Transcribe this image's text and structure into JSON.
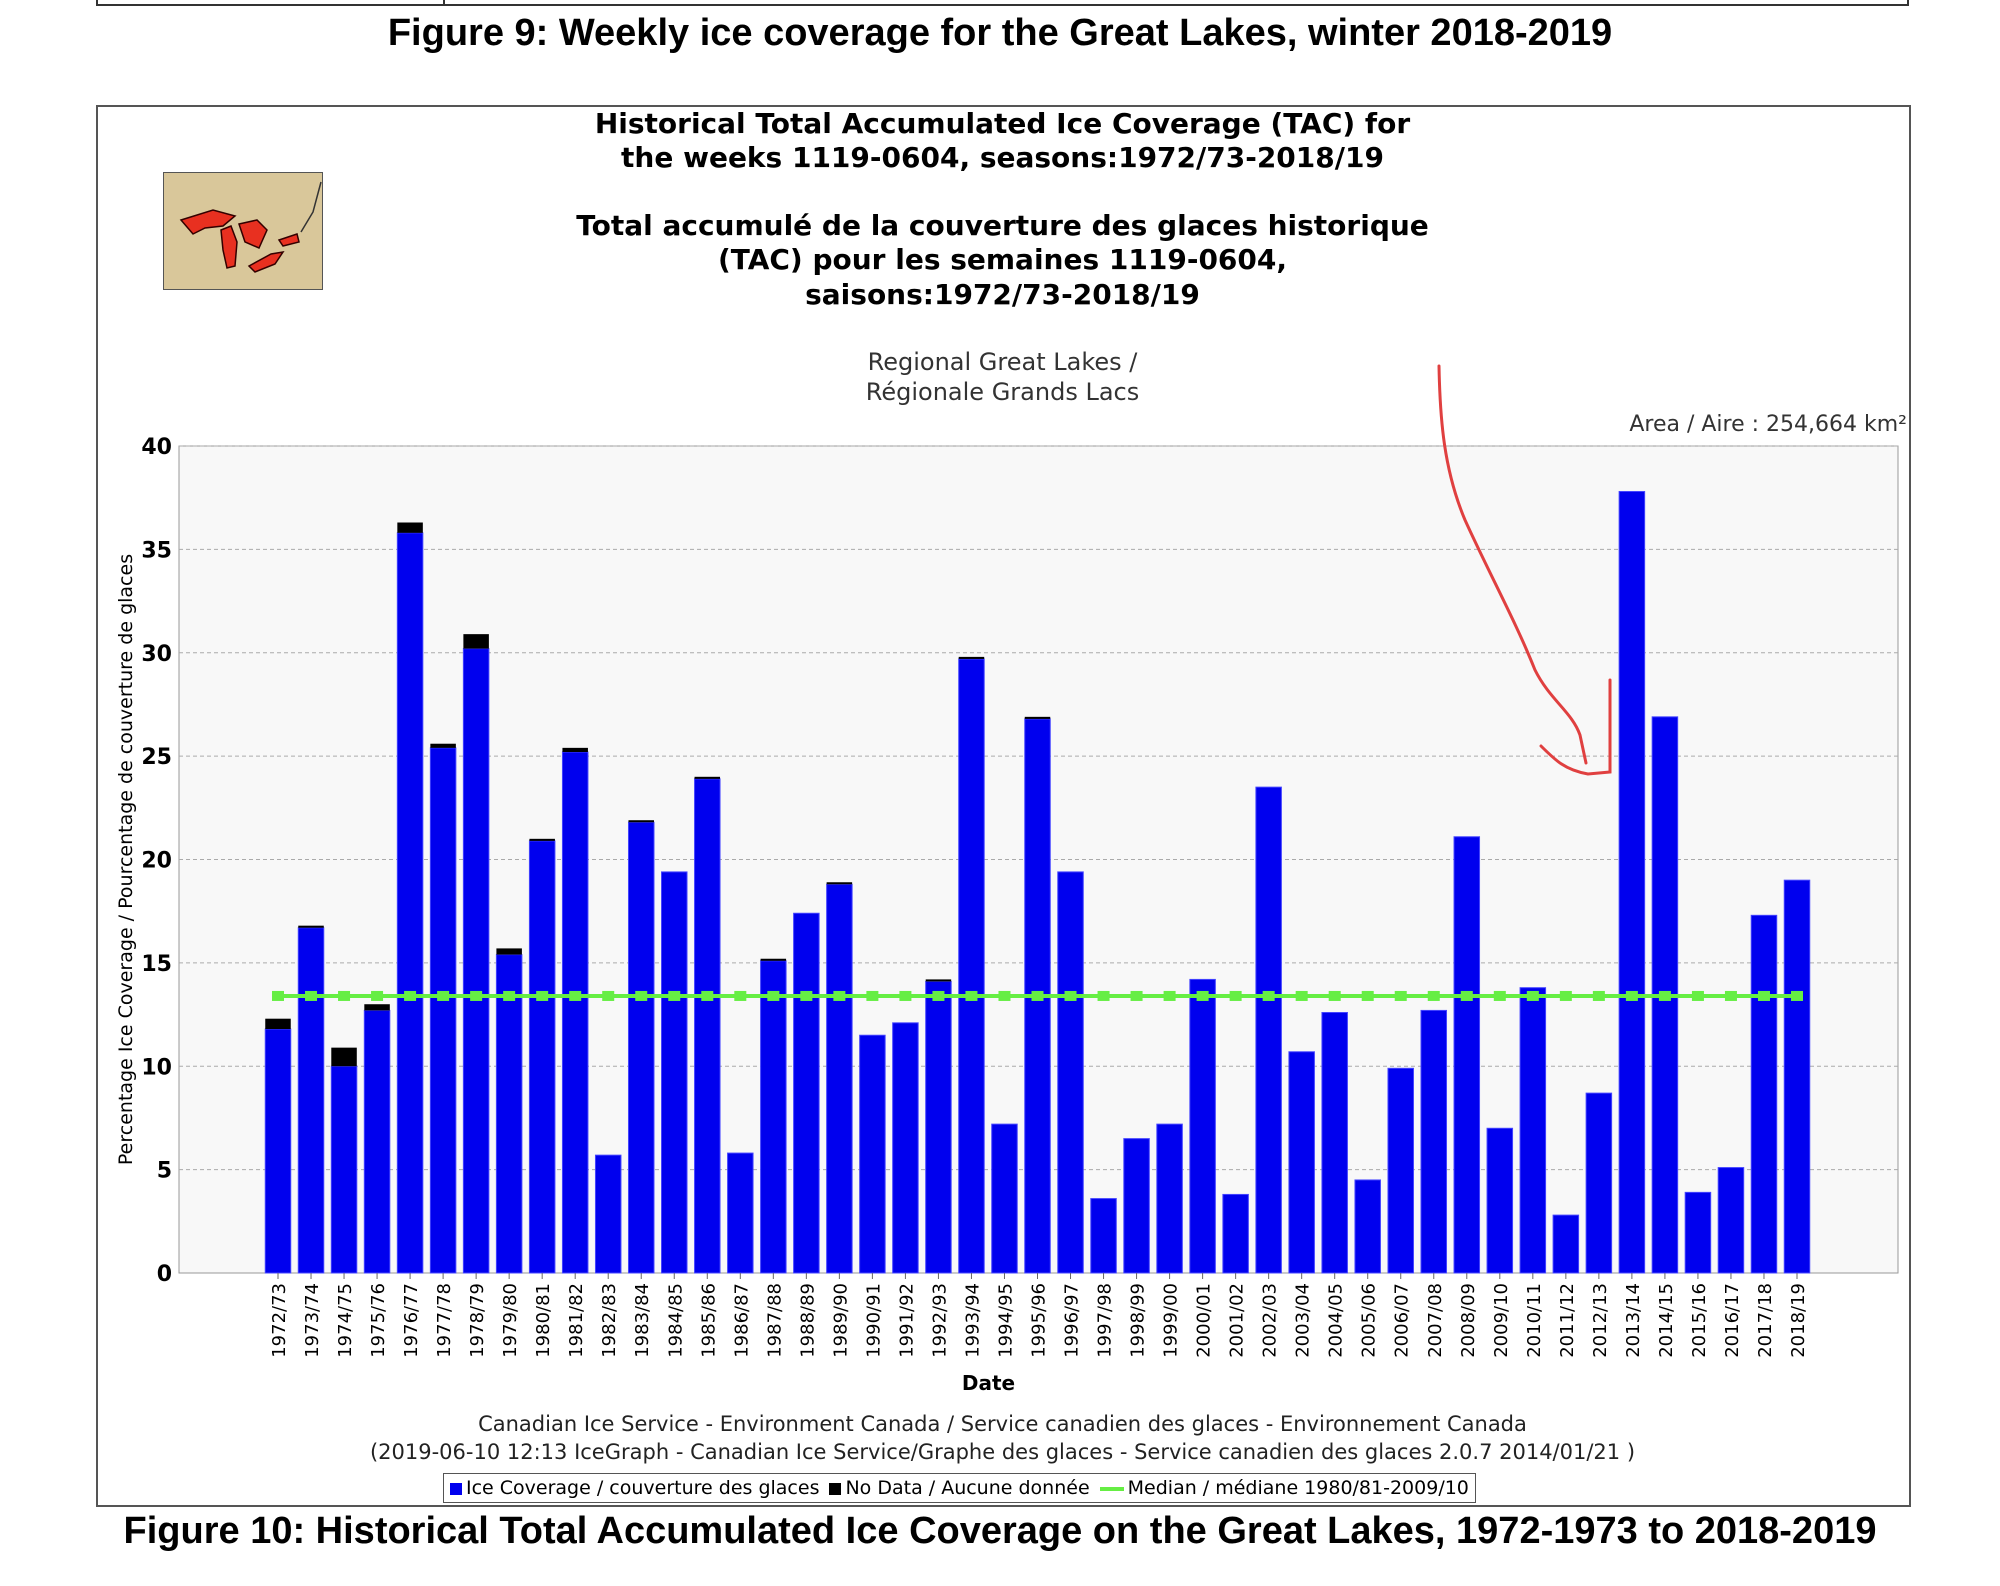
{
  "captions": {
    "figure9": "Figure 9: Weekly ice coverage for the Great Lakes, winter 2018-2019",
    "figure10": "Figure 10: Historical Total Accumulated Ice Coverage on the Great Lakes, 1972-1973 to 2018-2019"
  },
  "colors": {
    "ice": "#0000ee",
    "nodata": "#000000",
    "median": "#66ee44",
    "annotation": "#e04040"
  },
  "chart_data": {
    "type": "bar",
    "title": [
      "Historical Total Accumulated Ice Coverage (TAC) for",
      "the weeks 1119-0604, seasons:1972/73-2018/19"
    ],
    "title_fr": [
      "Total accumulé de la couverture des glaces historique",
      "(TAC) pour les semaines 1119-0604,",
      "saisons:1972/73-2018/19"
    ],
    "subtitle": [
      "Regional Great Lakes /",
      "Régionale Grands Lacs"
    ],
    "area_label": "Area / Aire : 254,664 km²",
    "xlabel": "Date",
    "ylabel": "Percentage Ice Coverage / Pourcentage de couverture de glaces",
    "ylim": [
      0,
      40
    ],
    "yticks": [
      0,
      5,
      10,
      15,
      20,
      25,
      30,
      35,
      40
    ],
    "grid": true,
    "legend_position": "bottom",
    "categories": [
      "1972/73",
      "1973/74",
      "1974/75",
      "1975/76",
      "1976/77",
      "1977/78",
      "1978/79",
      "1979/80",
      "1980/81",
      "1981/82",
      "1982/83",
      "1983/84",
      "1984/85",
      "1985/86",
      "1986/87",
      "1987/88",
      "1988/89",
      "1989/90",
      "1990/91",
      "1991/92",
      "1992/93",
      "1993/94",
      "1994/95",
      "1995/96",
      "1996/97",
      "1997/98",
      "1998/99",
      "1999/00",
      "2000/01",
      "2001/02",
      "2002/03",
      "2003/04",
      "2004/05",
      "2005/06",
      "2006/07",
      "2007/08",
      "2008/09",
      "2009/10",
      "2010/11",
      "2011/12",
      "2012/13",
      "2013/14",
      "2014/15",
      "2015/16",
      "2016/17",
      "2017/18",
      "2018/19"
    ],
    "series": [
      {
        "name": "Ice Coverage / couverture des glaces",
        "stacked": true,
        "values": [
          11.8,
          16.7,
          10.0,
          12.7,
          35.8,
          25.4,
          30.2,
          15.4,
          20.9,
          25.2,
          5.7,
          21.8,
          19.4,
          23.9,
          5.8,
          15.1,
          17.4,
          18.8,
          11.5,
          12.1,
          14.1,
          29.7,
          7.2,
          26.8,
          19.4,
          3.6,
          6.5,
          7.2,
          14.2,
          3.8,
          23.5,
          10.7,
          12.6,
          4.5,
          9.9,
          12.7,
          21.1,
          7.0,
          13.8,
          2.8,
          8.7,
          37.8,
          26.9,
          3.9,
          5.1,
          17.3,
          19.0
        ]
      },
      {
        "name": "No Data / Aucune donnée",
        "stacked": true,
        "values": [
          0.5,
          0.1,
          0.9,
          0.3,
          0.5,
          0.2,
          0.7,
          0.3,
          0.1,
          0.2,
          0,
          0.1,
          0,
          0.1,
          0,
          0.1,
          0,
          0.1,
          0,
          0,
          0.1,
          0.1,
          0,
          0.1,
          0,
          0,
          0,
          0,
          0,
          0,
          0,
          0,
          0,
          0,
          0,
          0,
          0,
          0,
          0,
          0,
          0,
          0,
          0,
          0,
          0,
          0,
          0
        ]
      },
      {
        "name": "Median / médiane 1980/81-2009/10",
        "type": "line",
        "value": 13.4
      }
    ]
  },
  "footer": {
    "line1": "Canadian Ice Service - Environment Canada / Service canadien des glaces - Environnement Canada",
    "line2": "(2019-06-10 12:13 IceGraph - Canadian Ice Service/Graphe des glaces - Service canadien des glaces 2.0.7 2014/01/21 )"
  }
}
